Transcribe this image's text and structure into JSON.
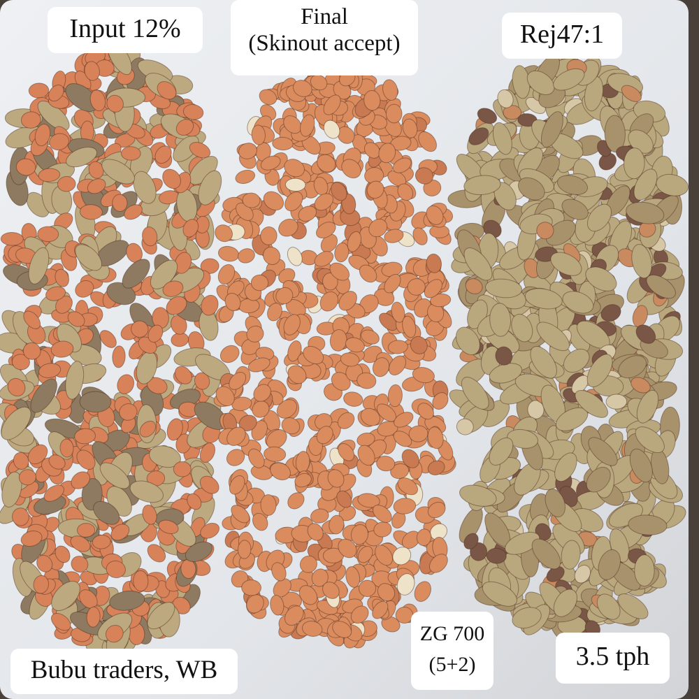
{
  "labels": {
    "input": "Input 12%",
    "final": [
      "Final",
      "(Skinout accept)"
    ],
    "reject": "Rej47:1",
    "trader": "Bubu traders, WB",
    "machine": [
      "ZG 700",
      "(5+2)"
    ],
    "capacity": "3.5 tph"
  }
}
